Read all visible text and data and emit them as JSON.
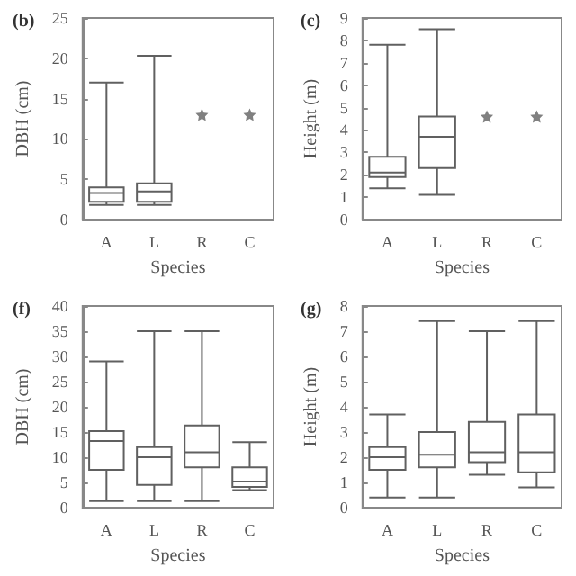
{
  "chart_data": [
    {
      "type": "box",
      "title": "(b)",
      "xlabel": "Species",
      "ylabel": "DBH (cm)",
      "categories": [
        "A",
        "L",
        "R",
        "C"
      ],
      "ylim": [
        0,
        25
      ],
      "yticks": [
        0,
        5,
        10,
        15,
        20,
        25
      ],
      "grid": false,
      "series": [
        {
          "color": "#606060",
          "boxes": [
            {
              "low": 1.8,
              "q1": 2.2,
              "median": 3.3,
              "q3": 4,
              "high": 17
            },
            {
              "low": 1.8,
              "q1": 2.2,
              "median": 3.5,
              "q3": 4.5,
              "high": 20.3
            },
            null,
            null
          ]
        },
        {
          "type": "scatter",
          "marker": "star",
          "color": "#606060",
          "x": [
            "R",
            "C"
          ],
          "values": [
            13,
            13
          ]
        }
      ]
    },
    {
      "type": "box",
      "title": "(c)",
      "xlabel": "Species",
      "ylabel": "Height (m)",
      "categories": [
        "A",
        "L",
        "R",
        "C"
      ],
      "ylim": [
        0,
        9
      ],
      "yticks": [
        0,
        1,
        2,
        3,
        4,
        5,
        6,
        7,
        8,
        9
      ],
      "grid": false,
      "series": [
        {
          "color": "#606060",
          "boxes": [
            {
              "low": 1.4,
              "q1": 1.9,
              "median": 2.1,
              "q3": 2.8,
              "high": 7.8
            },
            {
              "low": 1.1,
              "q1": 2.3,
              "median": 3.7,
              "q3": 4.6,
              "high": 8.5
            },
            null,
            null
          ]
        },
        {
          "type": "scatter",
          "marker": "star",
          "color": "#606060",
          "x": [
            "R",
            "C"
          ],
          "values": [
            4.6,
            4.6
          ]
        }
      ]
    },
    {
      "type": "box",
      "title": "(f)",
      "xlabel": "Species",
      "ylabel": "DBH (cm)",
      "categories": [
        "A",
        "L",
        "R",
        "C"
      ],
      "ylim": [
        0,
        40
      ],
      "yticks": [
        0,
        5,
        10,
        15,
        20,
        25,
        30,
        35,
        40
      ],
      "grid": false,
      "series": [
        {
          "color": "#606060",
          "boxes": [
            {
              "low": 1.3,
              "q1": 7.5,
              "median": 13.2,
              "q3": 15.2,
              "high": 29
            },
            {
              "low": 1.3,
              "q1": 4.5,
              "median": 10,
              "q3": 12,
              "high": 35
            },
            {
              "low": 1.3,
              "q1": 8,
              "median": 11,
              "q3": 16.3,
              "high": 35
            },
            {
              "low": 3.5,
              "q1": 4.1,
              "median": 5.2,
              "q3": 8,
              "high": 13
            }
          ]
        }
      ]
    },
    {
      "type": "box",
      "title": "(g)",
      "xlabel": "Species",
      "ylabel": "Height (m)",
      "categories": [
        "A",
        "L",
        "R",
        "C"
      ],
      "ylim": [
        0,
        8
      ],
      "yticks": [
        0,
        1,
        2,
        3,
        4,
        5,
        6,
        7,
        8
      ],
      "grid": false,
      "series": [
        {
          "color": "#606060",
          "boxes": [
            {
              "low": 0.4,
              "q1": 1.5,
              "median": 2,
              "q3": 2.4,
              "high": 3.7
            },
            {
              "low": 0.4,
              "q1": 1.6,
              "median": 2.1,
              "q3": 3,
              "high": 7.4
            },
            {
              "low": 1.3,
              "q1": 1.8,
              "median": 2.2,
              "q3": 3.4,
              "high": 7
            },
            {
              "low": 0.8,
              "q1": 1.4,
              "median": 2.2,
              "q3": 3.7,
              "high": 7.4
            }
          ]
        }
      ]
    }
  ]
}
